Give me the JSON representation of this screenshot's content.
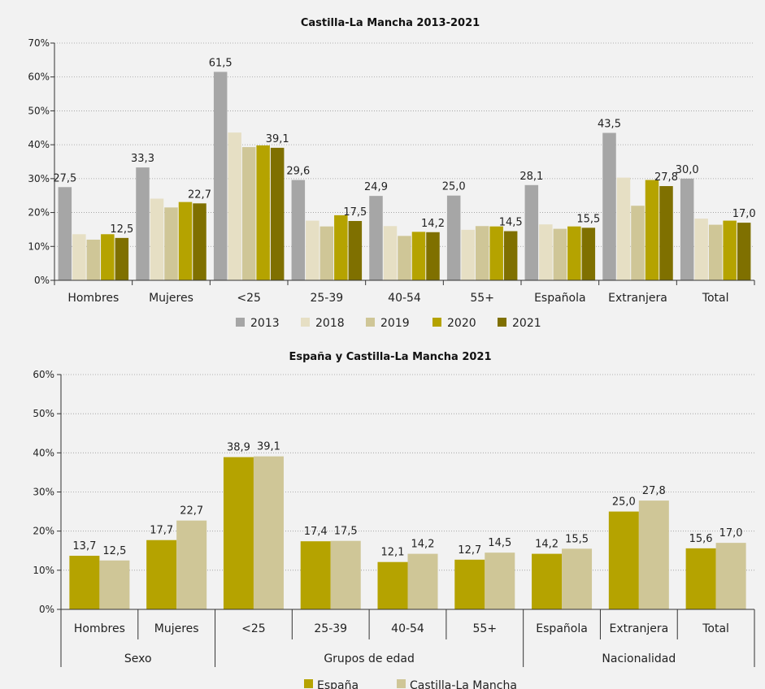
{
  "chart_data": [
    {
      "type": "bar",
      "title": "Castilla-La Mancha 2013-2021",
      "categories": [
        "Hombres",
        "Mujeres",
        "<25",
        "25-39",
        "40-54",
        "55+",
        "Española",
        "Extranjera",
        "Total"
      ],
      "ylim": [
        0,
        70
      ],
      "yticks": [
        "0%",
        "10%",
        "20%",
        "30%",
        "40%",
        "50%",
        "60%",
        "70%"
      ],
      "grid": true,
      "legend_position": "bottom",
      "series": [
        {
          "name": "2013",
          "color": "#a6a6a6",
          "values": [
            27.5,
            33.3,
            61.5,
            29.6,
            24.9,
            25.0,
            28.1,
            43.5,
            30.0
          ]
        },
        {
          "name": "2018",
          "color": "#e6dfc4",
          "values": [
            13.6,
            24.1,
            43.6,
            17.6,
            16.0,
            14.9,
            16.5,
            30.3,
            18.2
          ]
        },
        {
          "name": "2019",
          "color": "#cfc697",
          "values": [
            12.0,
            21.5,
            39.3,
            15.9,
            13.1,
            16.0,
            15.2,
            22.0,
            16.4
          ]
        },
        {
          "name": "2020",
          "color": "#b5a300",
          "values": [
            13.6,
            23.1,
            39.8,
            19.2,
            14.3,
            15.9,
            15.9,
            29.6,
            17.6
          ]
        },
        {
          "name": "2021",
          "color": "#7f7000",
          "values": [
            12.5,
            22.7,
            39.1,
            17.5,
            14.2,
            14.5,
            15.5,
            27.8,
            17.0
          ]
        }
      ],
      "data_labels": [
        {
          "series": 0,
          "category": 0,
          "text": "27,5"
        },
        {
          "series": 4,
          "category": 0,
          "text": "12,5"
        },
        {
          "series": 0,
          "category": 1,
          "text": "33,3"
        },
        {
          "series": 4,
          "category": 1,
          "text": "22,7"
        },
        {
          "series": 0,
          "category": 2,
          "text": "61,5"
        },
        {
          "series": 4,
          "category": 2,
          "text": "39,1"
        },
        {
          "series": 0,
          "category": 3,
          "text": "29,6"
        },
        {
          "series": 4,
          "category": 3,
          "text": "17,5"
        },
        {
          "series": 0,
          "category": 4,
          "text": "24,9"
        },
        {
          "series": 4,
          "category": 4,
          "text": "14,2"
        },
        {
          "series": 0,
          "category": 5,
          "text": "25,0"
        },
        {
          "series": 4,
          "category": 5,
          "text": "14,5"
        },
        {
          "series": 0,
          "category": 6,
          "text": "28,1"
        },
        {
          "series": 4,
          "category": 6,
          "text": "15,5"
        },
        {
          "series": 0,
          "category": 7,
          "text": "43,5"
        },
        {
          "series": 4,
          "category": 7,
          "text": "27,8"
        },
        {
          "series": 0,
          "category": 8,
          "text": "30,0"
        },
        {
          "series": 4,
          "category": 8,
          "text": "17,0"
        }
      ]
    },
    {
      "type": "bar",
      "title": "España y Castilla-La Mancha 2021",
      "categories": [
        "Hombres",
        "Mujeres",
        "<25",
        "25-39",
        "40-54",
        "55+",
        "Española",
        "Extranjera",
        "Total"
      ],
      "groups": [
        {
          "label": "Sexo",
          "from": 0,
          "to": 1
        },
        {
          "label": "Grupos de edad",
          "from": 2,
          "to": 5
        },
        {
          "label": "Nacionalidad",
          "from": 6,
          "to": 8
        }
      ],
      "ylim": [
        0,
        60
      ],
      "yticks": [
        "0%",
        "10%",
        "20%",
        "30%",
        "40%",
        "50%",
        "60%"
      ],
      "grid": true,
      "legend_position": "bottom",
      "series": [
        {
          "name": "España",
          "color": "#b5a300",
          "values": [
            13.7,
            17.7,
            38.9,
            17.4,
            12.1,
            12.7,
            14.2,
            25.0,
            15.6
          ],
          "labels": [
            "13,7",
            "17,7",
            "38,9",
            "17,4",
            "12,1",
            "12,7",
            "14,2",
            "25,0",
            "15,6"
          ]
        },
        {
          "name": "Castilla-La Mancha",
          "color": "#cfc697",
          "values": [
            12.5,
            22.7,
            39.1,
            17.5,
            14.2,
            14.5,
            15.5,
            27.8,
            17.0
          ],
          "labels": [
            "12,5",
            "22,7",
            "39,1",
            "17,5",
            "14,2",
            "14,5",
            "15,5",
            "27,8",
            "17,0"
          ]
        }
      ]
    }
  ]
}
